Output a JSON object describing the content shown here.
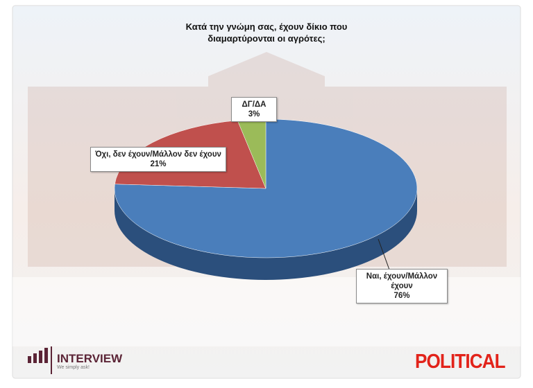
{
  "chart_data": {
    "type": "pie",
    "title": "Κατά την γνώμη σας, έχουν δίκιο που διαμαρτύρονται οι αγρότες;",
    "categories": [
      "Ναι, έχουν/Μάλλον έχουν",
      "Όχι, δεν έχουν/Μάλλον δεν έχουν",
      "ΔΓ/ΔΑ"
    ],
    "values": [
      76,
      21,
      3
    ],
    "value_labels": [
      "76%",
      "21%",
      "3%"
    ],
    "colors": [
      "#4a7ebb",
      "#c0504d",
      "#9bbb59"
    ],
    "side_colors": [
      "#2b4f7c",
      "#8c3432",
      "#6e8a3b"
    ]
  },
  "branding": {
    "pollster": "INTERVIEW",
    "slogan": "We simply ask!",
    "publisher": "POLITICAL"
  }
}
